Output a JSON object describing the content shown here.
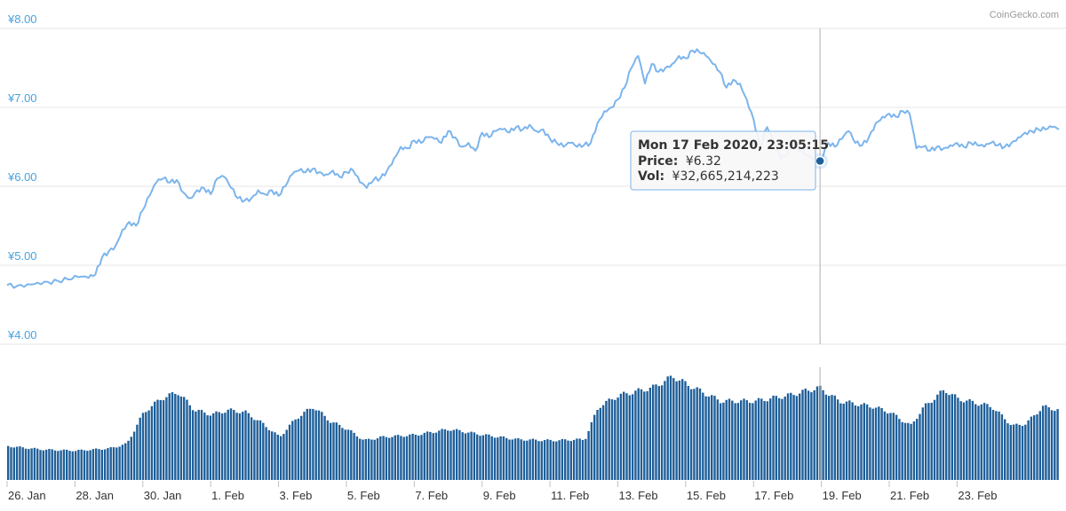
{
  "credit": "CoinGecko.com",
  "colors": {
    "price_line": "#7cb5ec",
    "volume_bar": "#1f5f99",
    "axis_label": "#4aa3df",
    "tooltip_border": "#7cb5ec",
    "marker": "#1f5f99"
  },
  "tooltip": {
    "date": "Mon 17 Feb 2020, 23:05:15",
    "price_label": "Price:",
    "price_value": "¥6.32",
    "vol_label": "Vol:",
    "vol_value": "¥32,665,214,223",
    "x_day": 23.96,
    "price": 6.32
  },
  "chart_data": [
    {
      "type": "line",
      "title": "",
      "series": [
        {
          "points": [
            [
              0.0,
              4.75
            ],
            [
              0.3,
              4.74
            ],
            [
              0.6,
              4.76
            ],
            [
              0.9,
              4.78
            ],
            [
              1.2,
              4.79
            ],
            [
              1.5,
              4.8
            ],
            [
              1.8,
              4.82
            ],
            [
              2.1,
              4.85
            ],
            [
              2.4,
              4.84
            ],
            [
              2.6,
              4.88
            ],
            [
              2.8,
              5.1
            ],
            [
              3.0,
              5.18
            ],
            [
              3.2,
              5.25
            ],
            [
              3.4,
              5.45
            ],
            [
              3.6,
              5.55
            ],
            [
              3.8,
              5.5
            ],
            [
              4.0,
              5.7
            ],
            [
              4.2,
              5.88
            ],
            [
              4.4,
              6.05
            ],
            [
              4.6,
              6.1
            ],
            [
              4.8,
              6.05
            ],
            [
              5.0,
              6.08
            ],
            [
              5.2,
              5.92
            ],
            [
              5.4,
              5.85
            ],
            [
              5.6,
              5.95
            ],
            [
              5.8,
              5.98
            ],
            [
              6.0,
              5.9
            ],
            [
              6.2,
              6.1
            ],
            [
              6.4,
              6.12
            ],
            [
              6.6,
              5.98
            ],
            [
              6.8,
              5.85
            ],
            [
              7.0,
              5.82
            ],
            [
              7.2,
              5.85
            ],
            [
              7.4,
              5.95
            ],
            [
              7.6,
              5.9
            ],
            [
              7.8,
              5.95
            ],
            [
              8.0,
              5.88
            ],
            [
              8.2,
              6.0
            ],
            [
              8.4,
              6.15
            ],
            [
              8.6,
              6.2
            ],
            [
              8.8,
              6.18
            ],
            [
              9.0,
              6.22
            ],
            [
              9.2,
              6.18
            ],
            [
              9.4,
              6.15
            ],
            [
              9.6,
              6.2
            ],
            [
              9.8,
              6.12
            ],
            [
              10.0,
              6.18
            ],
            [
              10.2,
              6.2
            ],
            [
              10.4,
              6.05
            ],
            [
              10.6,
              5.98
            ],
            [
              10.8,
              6.08
            ],
            [
              11.0,
              6.1
            ],
            [
              11.2,
              6.2
            ],
            [
              11.4,
              6.35
            ],
            [
              11.6,
              6.5
            ],
            [
              11.8,
              6.48
            ],
            [
              12.0,
              6.58
            ],
            [
              12.2,
              6.55
            ],
            [
              12.4,
              6.62
            ],
            [
              12.6,
              6.6
            ],
            [
              12.8,
              6.55
            ],
            [
              13.0,
              6.7
            ],
            [
              13.2,
              6.62
            ],
            [
              13.4,
              6.5
            ],
            [
              13.6,
              6.55
            ],
            [
              13.8,
              6.45
            ],
            [
              14.0,
              6.68
            ],
            [
              14.2,
              6.62
            ],
            [
              14.4,
              6.7
            ],
            [
              14.6,
              6.72
            ],
            [
              14.8,
              6.68
            ],
            [
              15.0,
              6.75
            ],
            [
              15.2,
              6.72
            ],
            [
              15.4,
              6.78
            ],
            [
              15.6,
              6.7
            ],
            [
              15.8,
              6.72
            ],
            [
              16.0,
              6.6
            ],
            [
              16.2,
              6.55
            ],
            [
              16.4,
              6.5
            ],
            [
              16.6,
              6.55
            ],
            [
              16.8,
              6.5
            ],
            [
              17.0,
              6.52
            ],
            [
              17.2,
              6.55
            ],
            [
              17.4,
              6.8
            ],
            [
              17.6,
              6.95
            ],
            [
              17.8,
              7.0
            ],
            [
              18.0,
              7.1
            ],
            [
              18.2,
              7.25
            ],
            [
              18.4,
              7.5
            ],
            [
              18.6,
              7.65
            ],
            [
              18.8,
              7.3
            ],
            [
              19.0,
              7.55
            ],
            [
              19.2,
              7.45
            ],
            [
              19.4,
              7.5
            ],
            [
              19.6,
              7.55
            ],
            [
              19.8,
              7.65
            ],
            [
              20.0,
              7.62
            ],
            [
              20.2,
              7.72
            ],
            [
              20.4,
              7.7
            ],
            [
              20.6,
              7.65
            ],
            [
              20.8,
              7.55
            ],
            [
              21.0,
              7.45
            ],
            [
              21.2,
              7.25
            ],
            [
              21.4,
              7.35
            ],
            [
              21.6,
              7.3
            ],
            [
              21.8,
              7.1
            ],
            [
              22.0,
              6.85
            ],
            [
              22.2,
              6.5
            ],
            [
              22.4,
              6.75
            ],
            [
              22.6,
              6.55
            ],
            [
              22.8,
              6.35
            ],
            [
              23.0,
              6.4
            ],
            [
              23.2,
              6.55
            ],
            [
              23.4,
              6.45
            ],
            [
              23.6,
              6.4
            ],
            [
              23.8,
              6.35
            ],
            [
              23.96,
              6.32
            ],
            [
              24.2,
              6.55
            ],
            [
              24.4,
              6.5
            ],
            [
              24.6,
              6.6
            ],
            [
              24.8,
              6.7
            ],
            [
              25.0,
              6.55
            ],
            [
              25.2,
              6.52
            ],
            [
              25.4,
              6.62
            ],
            [
              25.6,
              6.8
            ],
            [
              25.8,
              6.88
            ],
            [
              26.0,
              6.92
            ],
            [
              26.2,
              6.88
            ],
            [
              26.4,
              6.95
            ],
            [
              26.6,
              6.92
            ],
            [
              26.8,
              6.48
            ],
            [
              27.0,
              6.5
            ],
            [
              27.2,
              6.45
            ],
            [
              27.4,
              6.5
            ],
            [
              27.6,
              6.48
            ],
            [
              27.8,
              6.52
            ],
            [
              28.0,
              6.55
            ],
            [
              28.2,
              6.5
            ],
            [
              28.4,
              6.55
            ],
            [
              28.6,
              6.52
            ],
            [
              28.8,
              6.5
            ],
            [
              29.0,
              6.55
            ],
            [
              29.2,
              6.52
            ],
            [
              29.4,
              6.5
            ],
            [
              29.6,
              6.55
            ],
            [
              29.8,
              6.62
            ],
            [
              30.0,
              6.68
            ],
            [
              30.2,
              6.7
            ],
            [
              30.4,
              6.72
            ],
            [
              30.6,
              6.72
            ],
            [
              30.8,
              6.75
            ],
            [
              31.0,
              6.72
            ]
          ]
        }
      ],
      "x_ticks": [
        "26. Jan",
        "28. Jan",
        "30. Jan",
        "1. Feb",
        "3. Feb",
        "5. Feb",
        "7. Feb",
        "9. Feb",
        "11. Feb",
        "13. Feb",
        "15. Feb",
        "17. Feb",
        "19. Feb",
        "21. Feb",
        "23. Feb"
      ],
      "y_ticks": [
        "¥8.00",
        "¥7.00",
        "¥6.00",
        "¥5.00",
        "¥4.00"
      ],
      "y_tick_values": [
        8,
        7,
        6,
        5,
        4
      ],
      "ylim": [
        4,
        8
      ],
      "xlim_days": [
        0,
        31
      ],
      "grid": true
    },
    {
      "type": "bar",
      "title": "volume",
      "units": "relative",
      "volume_profile": [
        [
          0,
          0.3
        ],
        [
          1,
          0.27
        ],
        [
          2,
          0.26
        ],
        [
          3,
          0.28
        ],
        [
          3.5,
          0.32
        ],
        [
          4,
          0.6
        ],
        [
          4.5,
          0.72
        ],
        [
          5,
          0.78
        ],
        [
          5.5,
          0.62
        ],
        [
          6,
          0.58
        ],
        [
          6.5,
          0.62
        ],
        [
          7,
          0.6
        ],
        [
          7.5,
          0.5
        ],
        [
          8,
          0.38
        ],
        [
          8.5,
          0.55
        ],
        [
          9,
          0.65
        ],
        [
          9.5,
          0.52
        ],
        [
          10,
          0.45
        ],
        [
          10.5,
          0.35
        ],
        [
          11,
          0.38
        ],
        [
          12,
          0.4
        ],
        [
          13,
          0.45
        ],
        [
          14,
          0.4
        ],
        [
          15,
          0.36
        ],
        [
          16,
          0.35
        ],
        [
          17,
          0.36
        ],
        [
          17.4,
          0.65
        ],
        [
          18,
          0.75
        ],
        [
          19,
          0.82
        ],
        [
          19.6,
          0.92
        ],
        [
          20,
          0.85
        ],
        [
          21,
          0.7
        ],
        [
          22,
          0.7
        ],
        [
          23,
          0.75
        ],
        [
          23.9,
          0.82
        ],
        [
          24.5,
          0.7
        ],
        [
          25.5,
          0.65
        ],
        [
          26,
          0.6
        ],
        [
          26.6,
          0.48
        ],
        [
          27,
          0.65
        ],
        [
          27.6,
          0.8
        ],
        [
          28,
          0.72
        ],
        [
          29,
          0.65
        ],
        [
          29.6,
          0.48
        ],
        [
          30,
          0.5
        ],
        [
          30.5,
          0.65
        ],
        [
          31,
          0.62
        ]
      ]
    }
  ]
}
